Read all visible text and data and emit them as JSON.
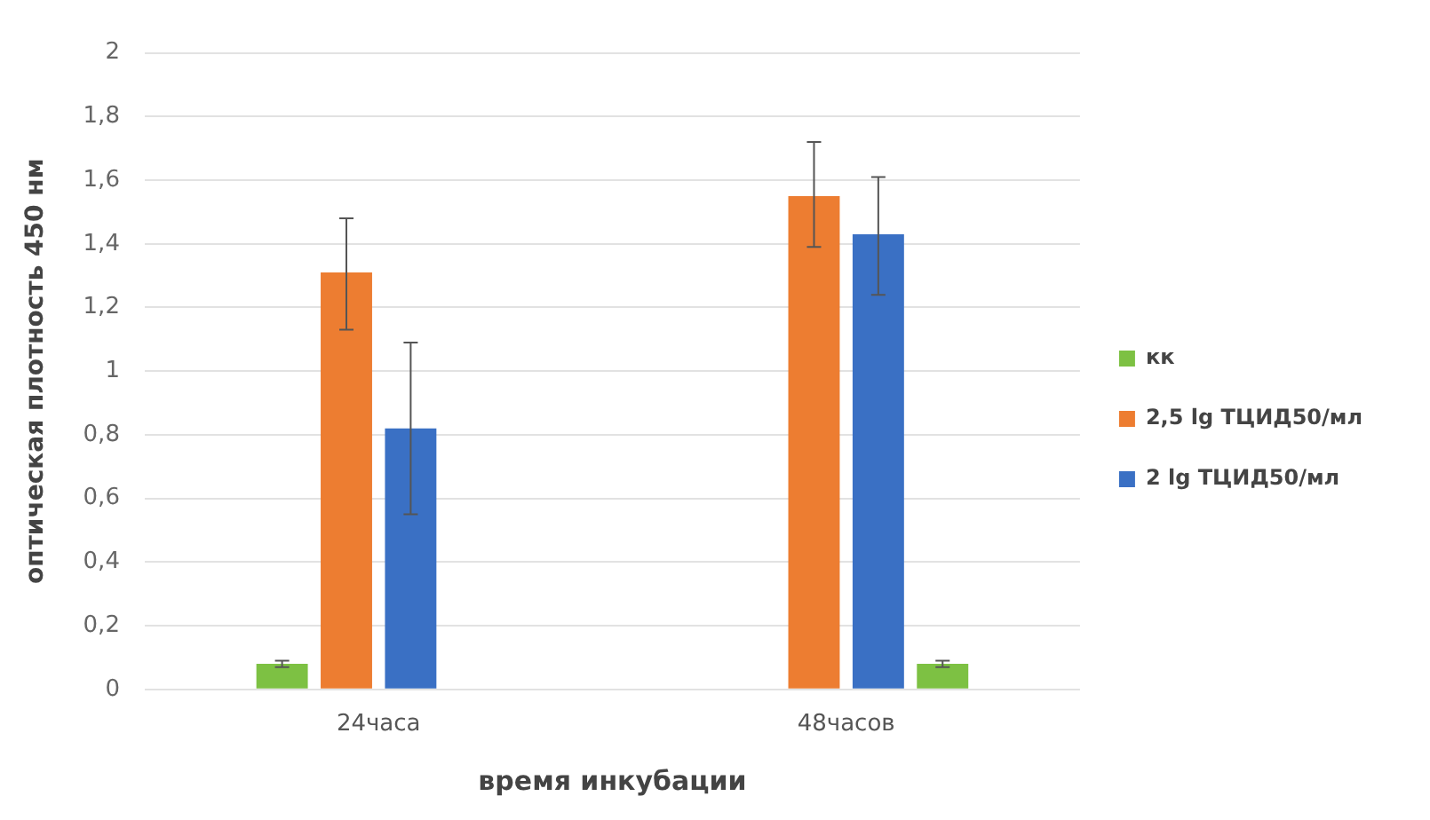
{
  "chart_data": {
    "type": "bar",
    "xlabel": "время инкубации",
    "ylabel": "оптическая плотность 450 нм",
    "categories": [
      "24часа",
      "48часов"
    ],
    "series": [
      {
        "name": "кк",
        "color": "#7dc143",
        "values": [
          0.08,
          null
        ],
        "errors": [
          0.01,
          null
        ]
      },
      {
        "name": "2,5 lg ТЦИД50/мл",
        "color": "#ed7d31",
        "values": [
          1.31,
          1.55
        ],
        "errors": [
          [
            1.13,
            1.48
          ],
          [
            1.39,
            1.72
          ]
        ]
      },
      {
        "name": "2 lg ТЦИД50/мл",
        "color": "#3a70c4",
        "values": [
          0.82,
          1.43
        ],
        "errors": [
          [
            0.55,
            1.09
          ],
          [
            1.24,
            1.61
          ]
        ]
      },
      {
        "color": "#7dc143",
        "values": [
          null,
          0.08
        ],
        "errors": [
          null,
          0.01
        ]
      }
    ],
    "ylim": [
      0,
      2
    ],
    "yticks": [
      0,
      {
        "value": 0.2,
        "label": "0,2"
      },
      {
        "value": 0.4,
        "label": "0,4"
      },
      {
        "value": 0.6,
        "label": "0,6"
      },
      {
        "value": 0.8,
        "label": "0,8"
      },
      1,
      {
        "value": 1.2,
        "label": "1,2"
      },
      {
        "value": 1.4,
        "label": "1,4"
      },
      {
        "value": 1.6,
        "label": "1,6"
      },
      {
        "value": 1.8,
        "label": "1,8"
      },
      2
    ],
    "grid": "y",
    "legend": "right"
  }
}
